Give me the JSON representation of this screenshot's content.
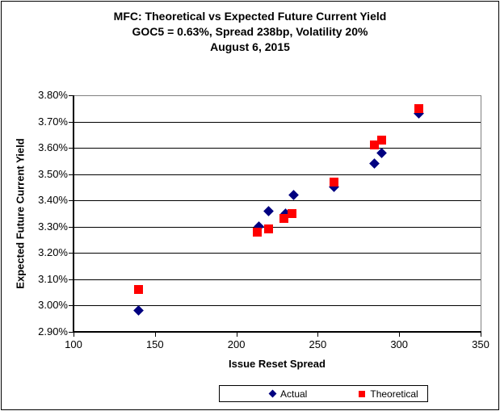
{
  "chart_data": {
    "type": "scatter",
    "title": "MFC: Theoretical vs Expected Future Current Yield",
    "subtitle": "GOC5 = 0.63%, Spread 238bp, Volatility 20%",
    "date_line": "August 6, 2015",
    "xlabel": "Issue Reset Spread",
    "ylabel": "Expected Future Current Yield",
    "xlim": [
      100,
      350
    ],
    "ylim": [
      2.9,
      3.8
    ],
    "x_ticks": [
      100,
      150,
      200,
      250,
      300,
      350
    ],
    "x_tick_labels": [
      "100",
      "150",
      "200",
      "250",
      "300",
      "350"
    ],
    "y_ticks": [
      2.9,
      3.0,
      3.1,
      3.2,
      3.3,
      3.4,
      3.5,
      3.6,
      3.7,
      3.8
    ],
    "y_tick_labels": [
      "2.90%",
      "3.00%",
      "3.10%",
      "3.20%",
      "3.30%",
      "3.40%",
      "3.50%",
      "3.60%",
      "3.70%",
      "3.80%"
    ],
    "grid": true,
    "gridline_color": "#000000",
    "plot_border_color": "#808080",
    "legend_position": "bottom",
    "series": [
      {
        "name": "Actual",
        "marker": "diamond",
        "color": "#000080",
        "points": [
          [
            140,
            2.98
          ],
          [
            214,
            3.3
          ],
          [
            220,
            3.36
          ],
          [
            230,
            3.35
          ],
          [
            235,
            3.42
          ],
          [
            260,
            3.45
          ],
          [
            285,
            3.54
          ],
          [
            289,
            3.58
          ],
          [
            312,
            3.73
          ]
        ]
      },
      {
        "name": "Theoretical",
        "marker": "square",
        "color": "#FF0000",
        "points": [
          [
            140,
            3.06
          ],
          [
            213,
            3.28
          ],
          [
            220,
            3.29
          ],
          [
            229,
            3.33
          ],
          [
            234,
            3.35
          ],
          [
            260,
            3.47
          ],
          [
            285,
            3.61
          ],
          [
            289,
            3.63
          ],
          [
            312,
            3.75
          ]
        ]
      }
    ]
  }
}
